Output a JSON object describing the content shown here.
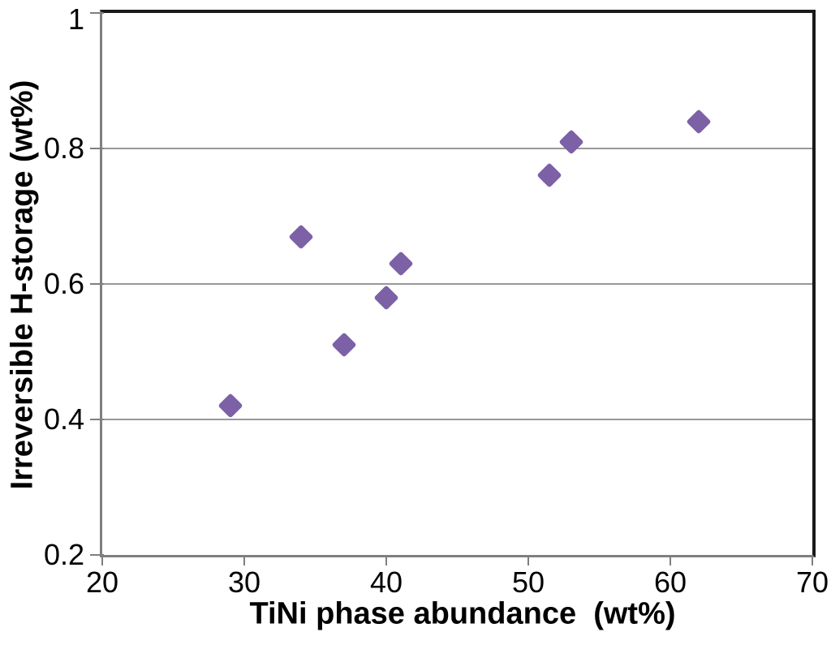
{
  "chart_data": {
    "type": "scatter",
    "title": "",
    "xlabel": "TiNi phase abundance  (wt%)",
    "ylabel": "Irreversible H-storage (wt%)",
    "xlim": [
      20,
      70
    ],
    "ylim": [
      0.2,
      1
    ],
    "x_ticks": [
      20,
      30,
      40,
      50,
      60,
      70
    ],
    "x_tick_labels": [
      "20",
      "30",
      "40",
      "50",
      "60",
      "70"
    ],
    "y_ticks": [
      0.2,
      0.4,
      0.6,
      0.8,
      1
    ],
    "y_tick_labels": [
      "0.2",
      "0.4",
      "0.6",
      "0.8",
      "1"
    ],
    "gridline_values": [
      0.4,
      0.6,
      0.8
    ],
    "grid": "horizontal-major-only",
    "legend": "none",
    "series": [
      {
        "name": "irreversible-h-storage-vs-tini-abundance",
        "marker": "diamond",
        "color": "#7c61a6",
        "points": [
          {
            "x": 29,
            "y": 0.42
          },
          {
            "x": 34,
            "y": 0.67
          },
          {
            "x": 37,
            "y": 0.51
          },
          {
            "x": 40,
            "y": 0.58
          },
          {
            "x": 41,
            "y": 0.63
          },
          {
            "x": 51.5,
            "y": 0.76
          },
          {
            "x": 53,
            "y": 0.81
          },
          {
            "x": 62,
            "y": 0.84
          }
        ]
      }
    ],
    "colors": {
      "background": "#ffffff",
      "gridline": "#989898",
      "axis_line": "#7f7f7f",
      "border": "#1a1a1a",
      "text": "#000000",
      "marker": "#7c61a6"
    }
  }
}
